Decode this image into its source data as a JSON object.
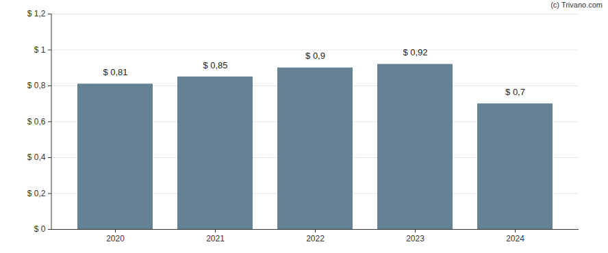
{
  "chart_data": {
    "type": "bar",
    "caption": "(c) Trivano.com",
    "categories": [
      "2020",
      "2021",
      "2022",
      "2023",
      "2024"
    ],
    "values": [
      0.81,
      0.85,
      0.9,
      0.92,
      0.7
    ],
    "value_labels": [
      "$ 0,81",
      "$ 0,85",
      "$ 0,9",
      "$ 0,92",
      "$ 0,7"
    ],
    "data_labels": true,
    "color": "#658194",
    "ylim": [
      0,
      1.2
    ],
    "yticks": [
      {
        "value": 0,
        "label": "$ 0"
      },
      {
        "value": 0.2,
        "label": "$ 0,2"
      },
      {
        "value": 0.4,
        "label": "$ 0,4"
      },
      {
        "value": 0.6,
        "label": "$ 0,6"
      },
      {
        "value": 0.8,
        "label": "$ 0,8"
      },
      {
        "value": 1,
        "label": "$ 1"
      },
      {
        "value": 1.2,
        "label": "$ 1,2"
      }
    ],
    "grid": true
  }
}
